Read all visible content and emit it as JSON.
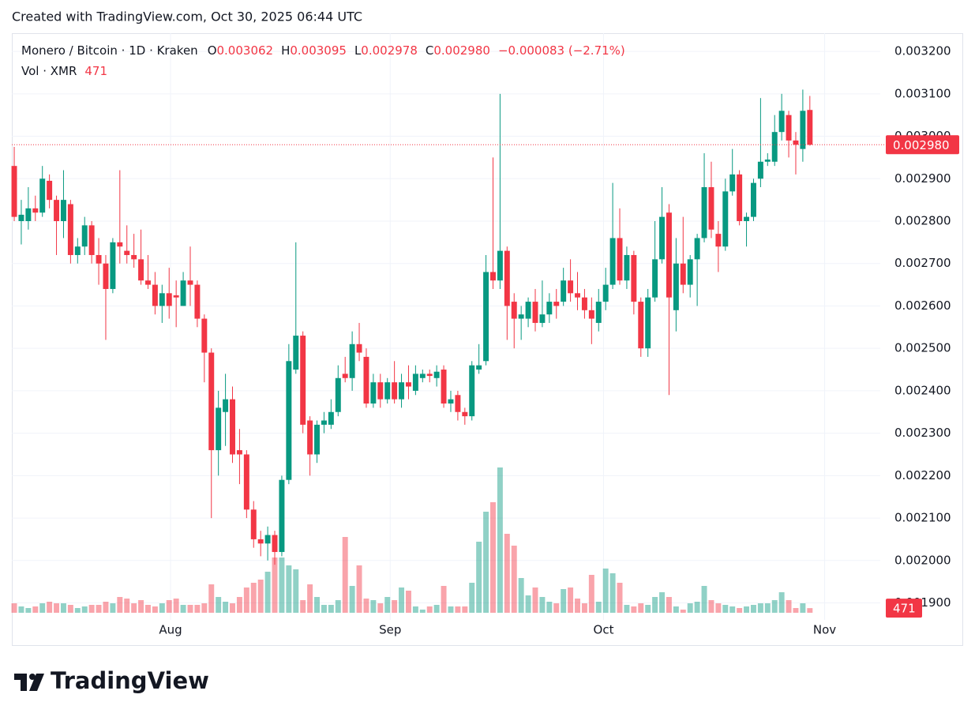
{
  "footer_top": "Created with TradingView.com, Oct 30, 2025 06:44 UTC",
  "brand": "TradingView",
  "chart_data": {
    "type": "candlestick",
    "title": "Monero / Bitcoin · 1D · Kraken",
    "ohlc_letters": [
      "O",
      "H",
      "L",
      "C"
    ],
    "ohlc_labels": [
      "0.003062",
      "0.003095",
      "0.002978",
      "0.002980"
    ],
    "change": "−0.000083 (−2.71%)",
    "volume_title": "Vol · XMR",
    "last_price_label": "0.002980",
    "up_color": "#089981",
    "down_color": "#f23645",
    "open": [
      0.00293,
      0.0028,
      0.0028,
      0.00283,
      0.00282,
      0.002895,
      0.00285,
      0.0028,
      0.00284,
      0.00272,
      0.00274,
      0.00279,
      0.00272,
      0.0027,
      0.00264,
      0.00275,
      0.00273,
      0.00272,
      0.00271,
      0.00266,
      0.00265,
      0.0026,
      0.00263,
      0.002625,
      0.0026,
      0.00266,
      0.00265,
      0.00257,
      0.00249,
      0.00226,
      0.00235,
      0.00238,
      0.00226,
      0.00225,
      0.00212,
      0.00205,
      0.00204,
      0.00206,
      0.00202,
      0.00219,
      0.00245,
      0.00253,
      0.00233,
      0.00225,
      0.00232,
      0.00232,
      0.00235,
      0.00244,
      0.00243,
      0.00251,
      0.00248,
      0.00237,
      0.00242,
      0.00238,
      0.00242,
      0.00238,
      0.00242,
      0.0024,
      0.00243,
      0.00244,
      0.00243,
      0.00245,
      0.00237,
      0.00239,
      0.00235,
      0.00234,
      0.00245,
      0.00247,
      0.00268,
      0.00266,
      0.00273,
      0.00261,
      0.00257,
      0.00257,
      0.00261,
      0.00256,
      0.00258,
      0.00261,
      0.00261,
      0.00266,
      0.00263,
      0.00262,
      0.00259,
      0.00256,
      0.00261,
      0.00265,
      0.00276,
      0.00266,
      0.00272,
      0.00261,
      0.0025,
      0.00262,
      0.00271,
      0.00282,
      0.00259,
      0.0027,
      0.00265,
      0.00271,
      0.00276,
      0.00288,
      0.00277,
      0.00274,
      0.00287,
      0.00291,
      0.0028,
      0.00281,
      0.0029,
      0.00294,
      0.00294,
      0.00301,
      0.00305,
      0.00299,
      0.00297,
      0.003062
    ],
    "high": [
      0.002975,
      0.00285,
      0.00288,
      0.00286,
      0.00293,
      0.00291,
      0.00286,
      0.00292,
      0.00285,
      0.00276,
      0.00281,
      0.0028,
      0.00276,
      0.00272,
      0.00276,
      0.00292,
      0.00279,
      0.00277,
      0.00278,
      0.00272,
      0.00268,
      0.00265,
      0.00269,
      0.00266,
      0.00268,
      0.00274,
      0.00266,
      0.00258,
      0.0025,
      0.0024,
      0.00244,
      0.00241,
      0.00231,
      0.00226,
      0.00214,
      0.00207,
      0.00208,
      0.00207,
      0.0022,
      0.00251,
      0.00275,
      0.00254,
      0.00234,
      0.00233,
      0.00235,
      0.00238,
      0.00246,
      0.00248,
      0.00254,
      0.00256,
      0.0025,
      0.00244,
      0.00244,
      0.00243,
      0.00247,
      0.00244,
      0.00246,
      0.00246,
      0.00245,
      0.00245,
      0.00246,
      0.00246,
      0.0024,
      0.0024,
      0.00236,
      0.00247,
      0.00251,
      0.00272,
      0.00295,
      0.0031,
      0.00274,
      0.00263,
      0.0026,
      0.00262,
      0.00264,
      0.00266,
      0.00263,
      0.00264,
      0.00269,
      0.00271,
      0.00268,
      0.00264,
      0.00262,
      0.00264,
      0.00269,
      0.00289,
      0.00283,
      0.00274,
      0.00273,
      0.00262,
      0.00264,
      0.0028,
      0.00288,
      0.00284,
      0.00276,
      0.00281,
      0.00272,
      0.00277,
      0.00296,
      0.00294,
      0.0028,
      0.0029,
      0.00297,
      0.00292,
      0.00282,
      0.0029,
      0.00309,
      0.00296,
      0.00305,
      0.0031,
      0.00306,
      0.00301,
      0.00311,
      0.003095
    ],
    "low": [
      0.0028,
      0.002745,
      0.00278,
      0.0028,
      0.00281,
      0.00283,
      0.00272,
      0.00276,
      0.0027,
      0.0027,
      0.00272,
      0.0027,
      0.00265,
      0.00252,
      0.00263,
      0.0027,
      0.0027,
      0.00269,
      0.00265,
      0.00264,
      0.00258,
      0.00256,
      0.00257,
      0.00255,
      0.0026,
      0.0026,
      0.00255,
      0.00242,
      0.0021,
      0.0022,
      0.00227,
      0.00223,
      0.00218,
      0.0021,
      0.00203,
      0.00201,
      0.002,
      0.00199,
      0.00201,
      0.00218,
      0.00244,
      0.0023,
      0.0022,
      0.00223,
      0.0023,
      0.00231,
      0.00234,
      0.00242,
      0.0024,
      0.00247,
      0.00236,
      0.00236,
      0.00236,
      0.00237,
      0.00237,
      0.00236,
      0.00238,
      0.00239,
      0.00242,
      0.00242,
      0.00241,
      0.00236,
      0.00235,
      0.00233,
      0.00232,
      0.00233,
      0.00244,
      0.00246,
      0.00264,
      0.00264,
      0.00252,
      0.0025,
      0.00252,
      0.00255,
      0.00254,
      0.00255,
      0.00256,
      0.00257,
      0.0026,
      0.00261,
      0.00259,
      0.00257,
      0.00251,
      0.00254,
      0.00259,
      0.00264,
      0.00265,
      0.00264,
      0.00258,
      0.00248,
      0.00248,
      0.00261,
      0.0027,
      0.00239,
      0.00254,
      0.00263,
      0.00262,
      0.0026,
      0.00275,
      0.00276,
      0.00268,
      0.00273,
      0.00286,
      0.00279,
      0.00274,
      0.0028,
      0.00288,
      0.00293,
      0.00293,
      0.00299,
      0.00295,
      0.00291,
      0.00294,
      0.002978
    ],
    "close": [
      0.00281,
      0.002815,
      0.00283,
      0.00282,
      0.0029,
      0.00285,
      0.0028,
      0.00285,
      0.00272,
      0.00274,
      0.00279,
      0.00272,
      0.0027,
      0.00264,
      0.00275,
      0.00274,
      0.00272,
      0.00271,
      0.00266,
      0.00265,
      0.0026,
      0.00263,
      0.0026,
      0.00262,
      0.00266,
      0.00265,
      0.00257,
      0.00249,
      0.00226,
      0.00236,
      0.00238,
      0.00225,
      0.00225,
      0.00212,
      0.00205,
      0.00204,
      0.00206,
      0.00202,
      0.00219,
      0.00247,
      0.00253,
      0.00232,
      0.00225,
      0.00232,
      0.00233,
      0.00235,
      0.00243,
      0.00243,
      0.00251,
      0.00249,
      0.00237,
      0.00242,
      0.00238,
      0.00242,
      0.00238,
      0.00242,
      0.00241,
      0.00244,
      0.00244,
      0.002435,
      0.002445,
      0.00237,
      0.00238,
      0.00235,
      0.00234,
      0.00246,
      0.00246,
      0.00268,
      0.00266,
      0.00273,
      0.0026,
      0.00257,
      0.00258,
      0.00261,
      0.00256,
      0.00258,
      0.00261,
      0.0026,
      0.00266,
      0.00263,
      0.00262,
      0.00259,
      0.00257,
      0.00261,
      0.00265,
      0.00276,
      0.00266,
      0.00272,
      0.00261,
      0.0025,
      0.00262,
      0.00271,
      0.00281,
      0.00262,
      0.0027,
      0.00265,
      0.00271,
      0.00276,
      0.00288,
      0.00278,
      0.00274,
      0.00287,
      0.00291,
      0.0028,
      0.00281,
      0.00289,
      0.00294,
      0.002945,
      0.00301,
      0.00306,
      0.00299,
      0.00298,
      0.00306,
      0.00298
    ],
    "volume": [
      960,
      640,
      480,
      640,
      960,
      1120,
      960,
      960,
      800,
      480,
      640,
      800,
      800,
      1120,
      960,
      1600,
      1440,
      960,
      1280,
      800,
      640,
      960,
      1280,
      1440,
      800,
      800,
      800,
      960,
      2880,
      1600,
      1120,
      960,
      1600,
      2560,
      3040,
      3360,
      4160,
      5600,
      5600,
      4800,
      4400,
      1280,
      2880,
      1600,
      800,
      800,
      1280,
      7680,
      2720,
      4800,
      1440,
      1280,
      960,
      1600,
      1280,
      2560,
      2240,
      640,
      320,
      640,
      800,
      2720,
      640,
      640,
      640,
      3040,
      7200,
      10240,
      11200,
      14720,
      8000,
      6800,
      3520,
      1760,
      2560,
      1600,
      1120,
      960,
      2400,
      2560,
      1440,
      960,
      3840,
      1120,
      4480,
      4000,
      3040,
      800,
      640,
      960,
      800,
      1600,
      2080,
      1600,
      640,
      320,
      960,
      1120,
      2720,
      1280,
      960,
      800,
      640,
      480,
      640,
      800,
      960,
      960,
      1280,
      2080,
      1280,
      480,
      960,
      471
    ],
    "xlim": [
      -0.34,
      123
    ],
    "xticks": [
      {
        "value": 22.2,
        "label": "Aug"
      },
      {
        "value": 53.4,
        "label": "Sep"
      },
      {
        "value": 83.7,
        "label": "Oct"
      },
      {
        "value": 115.1,
        "label": "Nov"
      }
    ],
    "ylim": [
      0.00186,
      0.003243
    ],
    "yticks": [
      {
        "value": 0.0019,
        "label": "0.001900"
      },
      {
        "value": 0.002,
        "label": "0.002000"
      },
      {
        "value": 0.0021,
        "label": "0.002100"
      },
      {
        "value": 0.0022,
        "label": "0.002200"
      },
      {
        "value": 0.0023,
        "label": "0.002300"
      },
      {
        "value": 0.0024,
        "label": "0.002400"
      },
      {
        "value": 0.0025,
        "label": "0.002500"
      },
      {
        "value": 0.0026,
        "label": "0.002600"
      },
      {
        "value": 0.0027,
        "label": "0.002700"
      },
      {
        "value": 0.0028,
        "label": "0.002800"
      },
      {
        "value": 0.0029,
        "label": "0.002900"
      },
      {
        "value": 0.003,
        "label": "0.003000"
      },
      {
        "value": 0.0031,
        "label": "0.003100"
      },
      {
        "value": 0.0032,
        "label": "0.003200"
      }
    ],
    "grid": true
  }
}
